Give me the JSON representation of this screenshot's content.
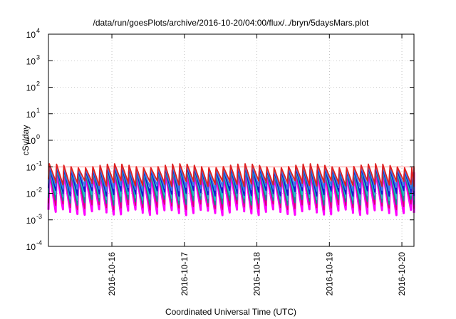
{
  "chart_data": {
    "type": "line",
    "title": "/data/run/goesPlots/archive/2016-10-20/04:00/flux/../bryn/5daysMars.plot",
    "xlabel": "Coordinated Universal Time (UTC)",
    "ylabel": "cSv/day",
    "yscale": "log",
    "ylim": [
      0.0001,
      10000
    ],
    "xlim": [
      "2016-10-15 03:00",
      "2016-10-20 04:00"
    ],
    "y_ticks": [
      {
        "base": "10",
        "exp": "-4",
        "value": 0.0001
      },
      {
        "base": "10",
        "exp": "-3",
        "value": 0.001
      },
      {
        "base": "10",
        "exp": "-2",
        "value": 0.01
      },
      {
        "base": "10",
        "exp": "-1",
        "value": 0.1
      },
      {
        "base": "10",
        "exp": "0",
        "value": 1
      },
      {
        "base": "10",
        "exp": "1",
        "value": 10
      },
      {
        "base": "10",
        "exp": "2",
        "value": 100
      },
      {
        "base": "10",
        "exp": "3",
        "value": 1000
      },
      {
        "base": "10",
        "exp": "4",
        "value": 10000
      }
    ],
    "x_ticks": [
      {
        "label": "2016-10-16",
        "value": "2016-10-16 00:00"
      },
      {
        "label": "2016-10-17",
        "value": "2016-10-17 00:00"
      },
      {
        "label": "2016-10-18",
        "value": "2016-10-18 00:00"
      },
      {
        "label": "2016-10-19",
        "value": "2016-10-19 00:00"
      },
      {
        "label": "2016-10-20",
        "value": "2016-10-20 00:00"
      }
    ],
    "grid": true,
    "grid_style": "dotted",
    "reference_line": {
      "value": 0.1,
      "color": "#ff6666"
    },
    "sawtooth_period_hours": 2.4,
    "series": [
      {
        "color": "#ff00ff",
        "peak": 0.075,
        "trough": 0.0025
      },
      {
        "color": "#d9007a",
        "peak": 0.08,
        "trough": 0.004
      },
      {
        "color": "#0f8f8f",
        "peak": 0.085,
        "trough": 0.006
      },
      {
        "color": "#20c0c8",
        "peak": 0.09,
        "trough": 0.009
      },
      {
        "color": "#1515d0",
        "peak": 0.1,
        "trough": 0.013
      },
      {
        "color": "#3a7de6",
        "peak": 0.11,
        "trough": 0.02
      },
      {
        "color": "#e02020",
        "peak": 0.13,
        "trough": 0.03
      }
    ]
  }
}
